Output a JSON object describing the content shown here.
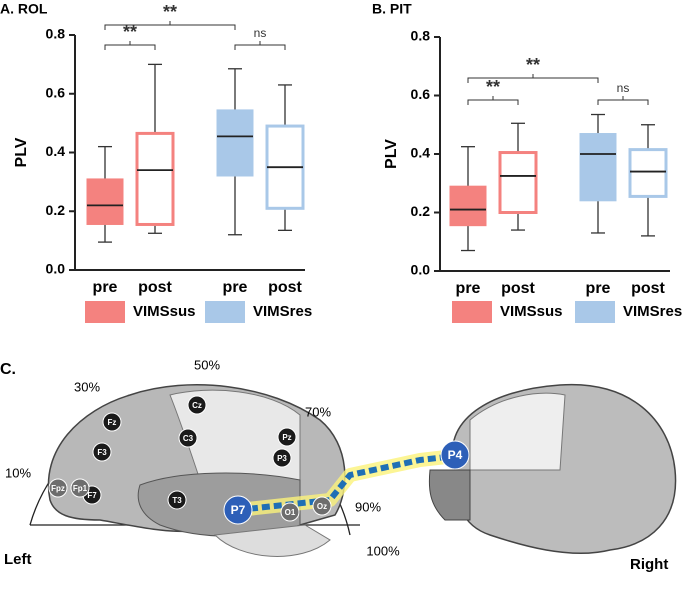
{
  "chart_data": [
    {
      "type": "box",
      "title": "A. ROL",
      "y_label": "PLV",
      "categories": [
        "pre",
        "post",
        "pre",
        "post"
      ],
      "ylim": [
        0,
        0.8
      ],
      "yticks": [
        {
          "value": 0,
          "label": "0.0"
        },
        0.2,
        0.4,
        0.6,
        0.8
      ],
      "series": [
        {
          "name": "VIMSsus",
          "color": "#f4827f",
          "values": [
            {
              "min": 0.095,
              "q1": 0.155,
              "median": 0.22,
              "q3": 0.31,
              "max": 0.42
            },
            {
              "min": 0.125,
              "q1": 0.155,
              "median": 0.34,
              "q3": 0.465,
              "max": 0.7
            },
            null,
            null
          ]
        },
        {
          "name": "VIMSres",
          "color": "#a9c8e8",
          "values": [
            null,
            null,
            {
              "min": 0.12,
              "q1": 0.32,
              "median": 0.455,
              "q3": 0.545,
              "max": 0.685
            },
            {
              "min": 0.135,
              "q1": 0.21,
              "median": 0.35,
              "q3": 0.49,
              "max": 0.63
            }
          ]
        }
      ],
      "annotations": [
        "**",
        "**",
        "ns"
      ]
    },
    {
      "type": "box",
      "title": "B. PIT",
      "y_label": "PLV",
      "categories": [
        "pre",
        "post",
        "pre",
        "post"
      ],
      "ylim": [
        0,
        0.8
      ],
      "yticks": [
        {
          "value": 0,
          "label": "0.0"
        },
        0.2,
        0.4,
        0.6,
        0.8
      ],
      "series": [
        {
          "name": "VIMSsus",
          "color": "#f4827f",
          "values": [
            {
              "min": 0.07,
              "q1": 0.155,
              "median": 0.21,
              "q3": 0.29,
              "max": 0.425
            },
            {
              "min": 0.14,
              "q1": 0.2,
              "median": 0.325,
              "q3": 0.405,
              "max": 0.505
            },
            null,
            null
          ]
        },
        {
          "name": "VIMSres",
          "color": "#a9c8e8",
          "values": [
            null,
            null,
            {
              "min": 0.13,
              "q1": 0.24,
              "median": 0.4,
              "q3": 0.47,
              "max": 0.535
            },
            {
              "min": 0.12,
              "q1": 0.255,
              "median": 0.34,
              "q3": 0.415,
              "max": 0.5
            }
          ]
        }
      ],
      "annotations": [
        "**",
        "**",
        "ns"
      ]
    }
  ],
  "panel_c": {
    "label": "C.",
    "percents": [
      "50%",
      "30%",
      "70%",
      "10%",
      "90%",
      "100%"
    ],
    "electrodes": [
      "Fz",
      "Cz",
      "C3",
      "Pz",
      "P3",
      "F3",
      "F7",
      "Fpz",
      "Fp1",
      "T3",
      "O1",
      "Oz",
      "P7",
      "P4"
    ],
    "left": "Left",
    "right": "Right"
  }
}
